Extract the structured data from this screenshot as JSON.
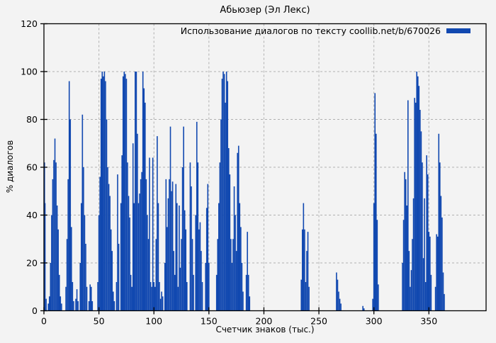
{
  "figure": {
    "title": "Абьюзер (Эл Лекс)",
    "x_axis_label": "Счетчик знаков (тыс.)",
    "y_axis_label": "% диалогов",
    "legend_label": "Использование диалогов по тексту coollib.net/b/670026"
  },
  "colors": {
    "bar": "#1148b0",
    "background": "#f3f3f3",
    "grid": "#b0b0b0",
    "axis": "#000000",
    "text": "#000000"
  },
  "chart_data": {
    "type": "bar",
    "title": "Абьюзер (Эл Лекс)",
    "xlabel": "Счетчик знаков (тыс.)",
    "ylabel": "% диалогов",
    "legend_label": "Использование диалогов по тексту coollib.net/b/670026",
    "legend_position": "top-right",
    "grid": true,
    "xlim": [
      0,
      402
    ],
    "ylim": [
      0,
      120
    ],
    "x_ticks": [
      0,
      50,
      100,
      150,
      200,
      250,
      300,
      350
    ],
    "y_ticks": [
      0,
      20,
      40,
      60,
      80,
      100,
      120
    ],
    "bar_width_units": 1,
    "points": [
      [
        0,
        62
      ],
      [
        1,
        45
      ],
      [
        2,
        5
      ],
      [
        4,
        3
      ],
      [
        5,
        6
      ],
      [
        6,
        20
      ],
      [
        7,
        40
      ],
      [
        8,
        55
      ],
      [
        9,
        63
      ],
      [
        10,
        72
      ],
      [
        11,
        62
      ],
      [
        12,
        44
      ],
      [
        13,
        34
      ],
      [
        14,
        15
      ],
      [
        15,
        6
      ],
      [
        16,
        3
      ],
      [
        20,
        10
      ],
      [
        21,
        30
      ],
      [
        22,
        55
      ],
      [
        23,
        96
      ],
      [
        24,
        80
      ],
      [
        25,
        35
      ],
      [
        26,
        12
      ],
      [
        27,
        4
      ],
      [
        29,
        5
      ],
      [
        30,
        9
      ],
      [
        31,
        4
      ],
      [
        33,
        20
      ],
      [
        34,
        45
      ],
      [
        35,
        82
      ],
      [
        36,
        60
      ],
      [
        37,
        40
      ],
      [
        38,
        28
      ],
      [
        39,
        10
      ],
      [
        41,
        4
      ],
      [
        42,
        11
      ],
      [
        43,
        10
      ],
      [
        44,
        4
      ],
      [
        49,
        12
      ],
      [
        50,
        40
      ],
      [
        51,
        56
      ],
      [
        52,
        97
      ],
      [
        53,
        100
      ],
      [
        54,
        98
      ],
      [
        55,
        100
      ],
      [
        56,
        96
      ],
      [
        57,
        80
      ],
      [
        58,
        60
      ],
      [
        59,
        53
      ],
      [
        60,
        48
      ],
      [
        61,
        34
      ],
      [
        62,
        25
      ],
      [
        63,
        8
      ],
      [
        64,
        4
      ],
      [
        66,
        12
      ],
      [
        67,
        57
      ],
      [
        68,
        28
      ],
      [
        70,
        45
      ],
      [
        71,
        65
      ],
      [
        72,
        98
      ],
      [
        73,
        100
      ],
      [
        74,
        99
      ],
      [
        75,
        97
      ],
      [
        76,
        62
      ],
      [
        77,
        48
      ],
      [
        78,
        39
      ],
      [
        79,
        15
      ],
      [
        80,
        10
      ],
      [
        81,
        70
      ],
      [
        82,
        45
      ],
      [
        83,
        100
      ],
      [
        84,
        100
      ],
      [
        85,
        74
      ],
      [
        86,
        45
      ],
      [
        87,
        49
      ],
      [
        88,
        55
      ],
      [
        89,
        58
      ],
      [
        90,
        100
      ],
      [
        91,
        93
      ],
      [
        92,
        87
      ],
      [
        93,
        55
      ],
      [
        94,
        40
      ],
      [
        95,
        30
      ],
      [
        96,
        64
      ],
      [
        97,
        12
      ],
      [
        98,
        10
      ],
      [
        99,
        64
      ],
      [
        100,
        12
      ],
      [
        101,
        10
      ],
      [
        102,
        30
      ],
      [
        103,
        73
      ],
      [
        104,
        45
      ],
      [
        105,
        12
      ],
      [
        106,
        5
      ],
      [
        107,
        8
      ],
      [
        108,
        6
      ],
      [
        110,
        20
      ],
      [
        111,
        55
      ],
      [
        112,
        35
      ],
      [
        113,
        47
      ],
      [
        114,
        55
      ],
      [
        115,
        77
      ],
      [
        116,
        50
      ],
      [
        117,
        54
      ],
      [
        118,
        25
      ],
      [
        119,
        15
      ],
      [
        120,
        53
      ],
      [
        121,
        45
      ],
      [
        122,
        10
      ],
      [
        123,
        44
      ],
      [
        124,
        18
      ],
      [
        125,
        30
      ],
      [
        126,
        60
      ],
      [
        127,
        77
      ],
      [
        128,
        42
      ],
      [
        129,
        34
      ],
      [
        130,
        12
      ],
      [
        133,
        62
      ],
      [
        134,
        52
      ],
      [
        135,
        30
      ],
      [
        136,
        15
      ],
      [
        138,
        40
      ],
      [
        139,
        79
      ],
      [
        140,
        62
      ],
      [
        141,
        34
      ],
      [
        142,
        37
      ],
      [
        143,
        25
      ],
      [
        144,
        12
      ],
      [
        147,
        20
      ],
      [
        148,
        43
      ],
      [
        149,
        53
      ],
      [
        150,
        20
      ],
      [
        157,
        15
      ],
      [
        158,
        30
      ],
      [
        159,
        45
      ],
      [
        160,
        62
      ],
      [
        161,
        80
      ],
      [
        162,
        97
      ],
      [
        163,
        100
      ],
      [
        164,
        99
      ],
      [
        165,
        87
      ],
      [
        166,
        100
      ],
      [
        167,
        96
      ],
      [
        168,
        68
      ],
      [
        169,
        57
      ],
      [
        170,
        30
      ],
      [
        171,
        20
      ],
      [
        172,
        30
      ],
      [
        173,
        52
      ],
      [
        174,
        40
      ],
      [
        175,
        25
      ],
      [
        176,
        66
      ],
      [
        177,
        69
      ],
      [
        178,
        45
      ],
      [
        179,
        35
      ],
      [
        180,
        20
      ],
      [
        181,
        8
      ],
      [
        184,
        15
      ],
      [
        185,
        33
      ],
      [
        186,
        15
      ],
      [
        187,
        6
      ],
      [
        234,
        13
      ],
      [
        235,
        34
      ],
      [
        236,
        45
      ],
      [
        237,
        34
      ],
      [
        238,
        12
      ],
      [
        239,
        25
      ],
      [
        240,
        33
      ],
      [
        241,
        10
      ],
      [
        266,
        16
      ],
      [
        267,
        13
      ],
      [
        268,
        8
      ],
      [
        269,
        5
      ],
      [
        270,
        3
      ],
      [
        290,
        2
      ],
      [
        291,
        1
      ],
      [
        299,
        5
      ],
      [
        300,
        45
      ],
      [
        301,
        91
      ],
      [
        302,
        74
      ],
      [
        303,
        38
      ],
      [
        304,
        11
      ],
      [
        326,
        20
      ],
      [
        327,
        38
      ],
      [
        328,
        58
      ],
      [
        329,
        55
      ],
      [
        330,
        44
      ],
      [
        331,
        88
      ],
      [
        332,
        25
      ],
      [
        333,
        10
      ],
      [
        334,
        17
      ],
      [
        335,
        30
      ],
      [
        336,
        47
      ],
      [
        337,
        89
      ],
      [
        338,
        87
      ],
      [
        339,
        100
      ],
      [
        340,
        98
      ],
      [
        341,
        94
      ],
      [
        342,
        84
      ],
      [
        343,
        75
      ],
      [
        344,
        62
      ],
      [
        345,
        22
      ],
      [
        346,
        47
      ],
      [
        347,
        12
      ],
      [
        348,
        65
      ],
      [
        349,
        57
      ],
      [
        350,
        33
      ],
      [
        351,
        31
      ],
      [
        352,
        15
      ],
      [
        356,
        10
      ],
      [
        357,
        32
      ],
      [
        358,
        31
      ],
      [
        359,
        74
      ],
      [
        360,
        62
      ],
      [
        361,
        48
      ],
      [
        362,
        39
      ],
      [
        363,
        16
      ],
      [
        364,
        7
      ]
    ]
  }
}
